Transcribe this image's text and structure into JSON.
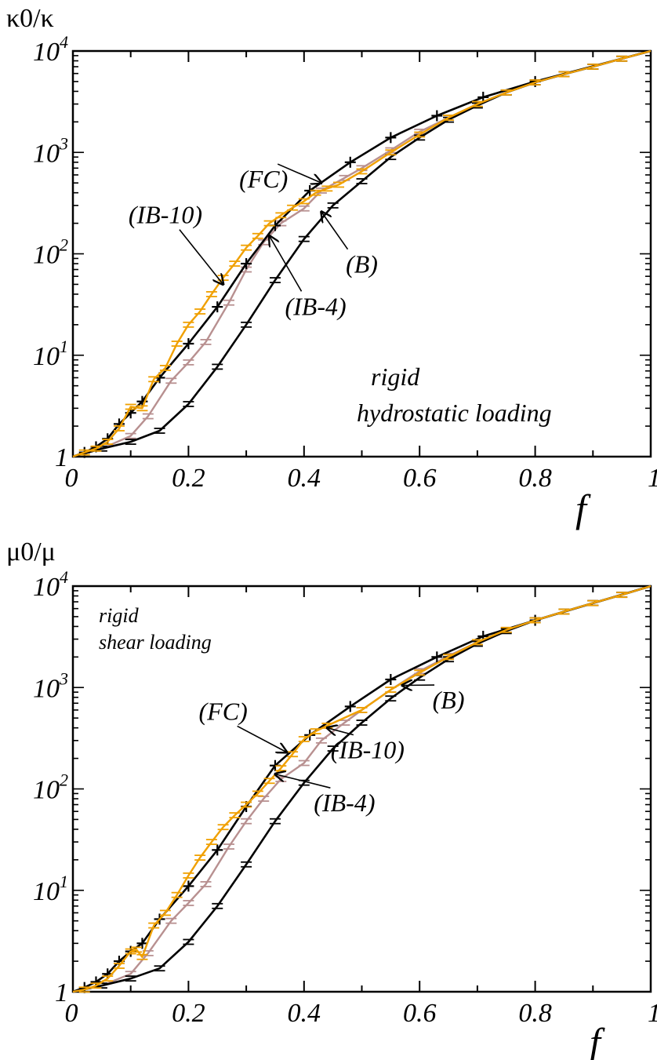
{
  "chart_data": [
    {
      "type": "line",
      "ylabel": "κ0/κ",
      "xlabel": "f",
      "xlim": [
        0,
        1
      ],
      "ylim": [
        1,
        10000
      ],
      "yscale": "log",
      "x_tick_labels": [
        "0",
        "0.2",
        "0.4",
        "0.6",
        "0.8",
        "1"
      ],
      "y_tick_labels": [
        {
          "base": "1",
          "exp": ""
        },
        {
          "base": "10",
          "exp": "1"
        },
        {
          "base": "10",
          "exp": "2"
        },
        {
          "base": "10",
          "exp": "3"
        },
        {
          "base": "10",
          "exp": "4"
        }
      ],
      "annotation": [
        "rigid",
        "hydrostatic loading"
      ],
      "series": [
        {
          "name": "(FC)",
          "color": "#000000",
          "marker": "plus",
          "x": [
            0,
            0.02,
            0.04,
            0.06,
            0.08,
            0.1,
            0.12,
            0.15,
            0.2,
            0.25,
            0.3,
            0.35,
            0.41,
            0.48,
            0.55,
            0.63,
            0.71,
            0.8,
            1.0
          ],
          "y": [
            1.0,
            1.1,
            1.25,
            1.5,
            2.1,
            2.7,
            3.5,
            6,
            13,
            30,
            80,
            190,
            420,
            800,
            1400,
            2300,
            3500,
            5000,
            10000
          ]
        },
        {
          "name": "(IB-10)",
          "color": "#f0a000",
          "marker": "bar",
          "x": [
            0,
            0.02,
            0.04,
            0.06,
            0.08,
            0.1,
            0.12,
            0.14,
            0.16,
            0.18,
            0.2,
            0.22,
            0.24,
            0.26,
            0.28,
            0.3,
            0.32,
            0.34,
            0.36,
            0.38,
            0.4,
            0.42,
            0.44,
            0.46,
            0.5,
            0.55,
            0.6,
            0.65,
            0.7,
            0.75,
            0.8,
            0.85,
            0.9,
            0.95,
            1.0
          ],
          "y": [
            1.0,
            1.1,
            1.2,
            1.4,
            1.9,
            3.1,
            3.0,
            5.8,
            7.5,
            13,
            20,
            27,
            40,
            58,
            80,
            115,
            150,
            200,
            240,
            285,
            330,
            400,
            440,
            480,
            650,
            1000,
            1500,
            2200,
            3000,
            3900,
            4900,
            5900,
            7000,
            8400,
            10000
          ]
        },
        {
          "name": "(IB-4)",
          "color": "#b89090",
          "marker": "bar",
          "x": [
            0,
            0.05,
            0.1,
            0.13,
            0.17,
            0.2,
            0.23,
            0.27,
            0.3,
            0.33,
            0.36,
            0.4,
            0.43,
            0.47,
            0.5,
            0.55,
            0.6,
            0.65,
            0.7,
            0.75,
            0.8,
            0.85,
            0.9,
            0.95,
            1.0
          ],
          "y": [
            1.0,
            1.2,
            1.6,
            2.5,
            5.6,
            8.5,
            13.5,
            33,
            70,
            130,
            200,
            280,
            420,
            560,
            700,
            1050,
            1600,
            2200,
            3000,
            3900,
            4900,
            5900,
            7000,
            8400,
            10000
          ]
        },
        {
          "name": "(B)",
          "color": "#000000",
          "marker": "bar",
          "x": [
            0,
            0.05,
            0.1,
            0.15,
            0.2,
            0.25,
            0.3,
            0.35,
            0.4,
            0.45,
            0.5,
            0.55,
            0.6,
            0.65,
            0.7,
            0.75,
            0.8,
            0.85,
            0.9,
            0.95,
            1.0
          ],
          "y": [
            1.0,
            1.2,
            1.4,
            1.8,
            3.3,
            7.7,
            20,
            55,
            140,
            300,
            520,
            900,
            1400,
            2100,
            2900,
            3900,
            4900,
            5900,
            7000,
            8400,
            10000
          ]
        }
      ],
      "labels": [
        {
          "text": "(FC)",
          "series": "(FC)",
          "tx": 0.33,
          "ty": 450,
          "ax": 0.43,
          "ay": 500
        },
        {
          "text": "(IB-10)",
          "series": "(IB-10)",
          "tx": 0.16,
          "ty": 200,
          "ax": 0.26,
          "ay": 50
        },
        {
          "text": "(B)",
          "series": "(B)",
          "tx": 0.5,
          "ty": 65,
          "ax": 0.43,
          "ay": 260
        },
        {
          "text": "(IB-4)",
          "series": "(IB-4)",
          "tx": 0.42,
          "ty": 25,
          "ax": 0.34,
          "ay": 150
        }
      ]
    },
    {
      "type": "line",
      "ylabel": "μ0/μ",
      "xlabel": "f",
      "xlim": [
        0,
        1
      ],
      "ylim": [
        1,
        10000
      ],
      "yscale": "log",
      "x_tick_labels": [
        "0",
        "0.2",
        "0.4",
        "0.6",
        "0.8",
        "1"
      ],
      "y_tick_labels": [
        {
          "base": "1",
          "exp": ""
        },
        {
          "base": "10",
          "exp": "1"
        },
        {
          "base": "10",
          "exp": "2"
        },
        {
          "base": "10",
          "exp": "3"
        },
        {
          "base": "10",
          "exp": "4"
        }
      ],
      "annotation": [
        "rigid",
        "shear loading"
      ],
      "series": [
        {
          "name": "(FC)",
          "color": "#000000",
          "marker": "plus",
          "x": [
            0,
            0.02,
            0.04,
            0.06,
            0.08,
            0.1,
            0.12,
            0.15,
            0.2,
            0.25,
            0.3,
            0.35,
            0.41,
            0.48,
            0.55,
            0.63,
            0.71,
            0.8,
            1.0
          ],
          "y": [
            1.0,
            1.1,
            1.25,
            1.5,
            2.0,
            2.5,
            3.0,
            5.2,
            11,
            25,
            67,
            170,
            340,
            650,
            1200,
            2000,
            3200,
            4600,
            10000
          ]
        },
        {
          "name": "(IB-10)",
          "color": "#f0a000",
          "marker": "bar",
          "x": [
            0,
            0.02,
            0.04,
            0.06,
            0.08,
            0.1,
            0.11,
            0.12,
            0.14,
            0.16,
            0.18,
            0.2,
            0.22,
            0.24,
            0.26,
            0.28,
            0.3,
            0.32,
            0.34,
            0.36,
            0.38,
            0.4,
            0.42,
            0.44,
            0.5,
            0.55,
            0.6,
            0.65,
            0.7,
            0.75,
            0.8,
            0.85,
            0.9,
            0.95,
            1.0
          ],
          "y": [
            1.0,
            1.05,
            1.15,
            1.35,
            1.8,
            2.5,
            2.6,
            2.2,
            4.5,
            6,
            9,
            14,
            21,
            30,
            42,
            55,
            70,
            90,
            120,
            160,
            220,
            310,
            370,
            420,
            600,
            950,
            1400,
            2000,
            2800,
            3700,
            4600,
            5600,
            6800,
            8200,
            10000
          ]
        },
        {
          "name": "(IB-4)",
          "color": "#b89090",
          "marker": "bar",
          "x": [
            0,
            0.05,
            0.1,
            0.13,
            0.17,
            0.2,
            0.23,
            0.27,
            0.3,
            0.33,
            0.36,
            0.4,
            0.43,
            0.47,
            0.5,
            0.55,
            0.6,
            0.65,
            0.7,
            0.75,
            0.8,
            0.85,
            0.9,
            0.95,
            1.0
          ],
          "y": [
            1.0,
            1.15,
            1.5,
            2.4,
            5.0,
            7.5,
            11.5,
            27,
            48,
            80,
            125,
            180,
            300,
            450,
            600,
            950,
            1450,
            2050,
            2800,
            3700,
            4600,
            5600,
            6800,
            8200,
            10000
          ]
        },
        {
          "name": "(B)",
          "color": "#000000",
          "marker": "bar",
          "x": [
            0,
            0.05,
            0.1,
            0.15,
            0.2,
            0.25,
            0.3,
            0.35,
            0.4,
            0.45,
            0.5,
            0.55,
            0.6,
            0.65,
            0.7,
            0.75,
            0.8,
            0.85,
            0.9,
            0.95,
            1.0
          ],
          "y": [
            1.0,
            1.15,
            1.35,
            1.7,
            3.1,
            7.0,
            18,
            48,
            115,
            250,
            450,
            780,
            1250,
            1900,
            2700,
            3600,
            4600,
            5600,
            6800,
            8200,
            10000
          ]
        }
      ],
      "labels": [
        {
          "text": "(FC)",
          "series": "(FC)",
          "tx": 0.26,
          "ty": 480,
          "ax": 0.37,
          "ay": 230
        },
        {
          "text": "(B)",
          "series": "(B)",
          "tx": 0.65,
          "ty": 620,
          "ax": 0.57,
          "ay": 1050
        },
        {
          "text": "(IB-10)",
          "series": "(IB-10)",
          "tx": 0.51,
          "ty": 200,
          "ax": 0.44,
          "ay": 400
        },
        {
          "text": "(IB-4)",
          "series": "(IB-4)",
          "tx": 0.47,
          "ty": 60,
          "ax": 0.35,
          "ay": 140
        }
      ]
    }
  ]
}
